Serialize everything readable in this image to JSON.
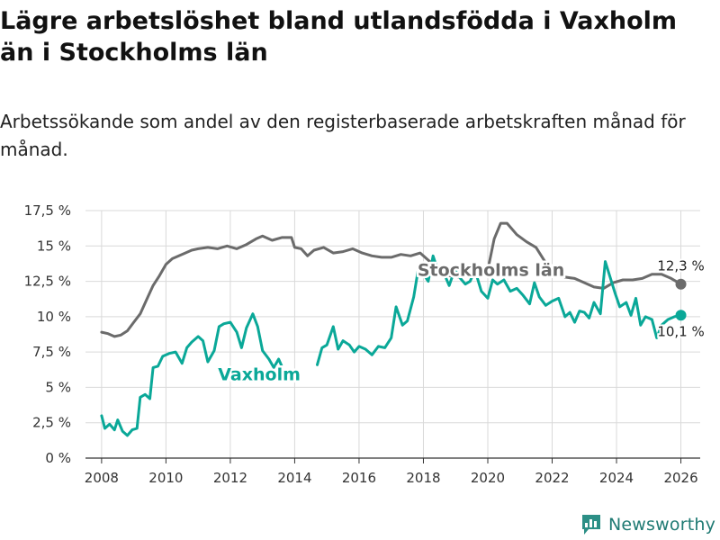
{
  "title": "Lägre arbetslöshet bland utlandsfödda i Vaxholm än i Stockholms län",
  "subtitle": "Arbetssökande som andel av den registerbaserade arbetskraften månad för månad.",
  "brand": "Newsworthy",
  "colors": {
    "stockholm": "#6b6b6b",
    "vaxholm": "#0aa898",
    "brand": "#1f7a73"
  },
  "chart_data": {
    "type": "line",
    "title": "Lägre arbetslöshet bland utlandsfödda i Vaxholm än i Stockholms län",
    "xlabel": "",
    "ylabel": "",
    "xlim": [
      2007.5,
      2026.6
    ],
    "ylim": [
      0,
      17.5
    ],
    "grid": true,
    "x_ticks": [
      2008,
      2010,
      2012,
      2014,
      2016,
      2018,
      2020,
      2022,
      2024,
      2026
    ],
    "y_ticks": [
      0,
      2.5,
      5,
      7.5,
      10,
      12.5,
      15,
      17.5
    ],
    "y_tick_labels": [
      "0 %",
      "2,5 %",
      "5 %",
      "7,5 %",
      "10 %",
      "12,5 %",
      "15 %",
      "17,5 %"
    ],
    "series": [
      {
        "name": "Stockholms län",
        "color": "#6b6b6b",
        "end_label": "12,3 %",
        "points": [
          [
            2008.0,
            8.9
          ],
          [
            2008.2,
            8.8
          ],
          [
            2008.4,
            8.6
          ],
          [
            2008.6,
            8.7
          ],
          [
            2008.8,
            9.0
          ],
          [
            2009.0,
            9.6
          ],
          [
            2009.2,
            10.2
          ],
          [
            2009.4,
            11.2
          ],
          [
            2009.6,
            12.2
          ],
          [
            2009.8,
            12.9
          ],
          [
            2010.0,
            13.7
          ],
          [
            2010.2,
            14.1
          ],
          [
            2010.4,
            14.3
          ],
          [
            2010.6,
            14.5
          ],
          [
            2010.8,
            14.7
          ],
          [
            2011.0,
            14.8
          ],
          [
            2011.3,
            14.9
          ],
          [
            2011.6,
            14.8
          ],
          [
            2011.9,
            15.0
          ],
          [
            2012.2,
            14.8
          ],
          [
            2012.5,
            15.1
          ],
          [
            2012.8,
            15.5
          ],
          [
            2013.0,
            15.7
          ],
          [
            2013.3,
            15.4
          ],
          [
            2013.6,
            15.6
          ],
          [
            2013.9,
            15.6
          ],
          [
            2014.0,
            14.9
          ],
          [
            2014.2,
            14.8
          ],
          [
            2014.4,
            14.3
          ],
          [
            2014.6,
            14.7
          ],
          [
            2014.9,
            14.9
          ],
          [
            2015.2,
            14.5
          ],
          [
            2015.5,
            14.6
          ],
          [
            2015.8,
            14.8
          ],
          [
            2016.1,
            14.5
          ],
          [
            2016.4,
            14.3
          ],
          [
            2016.7,
            14.2
          ],
          [
            2017.0,
            14.2
          ],
          [
            2017.3,
            14.4
          ],
          [
            2017.6,
            14.3
          ],
          [
            2017.9,
            14.5
          ],
          [
            2018.2,
            13.9
          ],
          [
            2018.5,
            13.2
          ],
          [
            2018.8,
            12.9
          ],
          [
            2019.1,
            12.8
          ],
          [
            2019.4,
            12.9
          ],
          [
            2019.7,
            12.9
          ],
          [
            2020.0,
            13.3
          ],
          [
            2020.2,
            15.5
          ],
          [
            2020.4,
            16.6
          ],
          [
            2020.6,
            16.6
          ],
          [
            2020.9,
            15.8
          ],
          [
            2021.2,
            15.3
          ],
          [
            2021.5,
            14.9
          ],
          [
            2021.8,
            13.8
          ],
          [
            2022.1,
            13.2
          ],
          [
            2022.4,
            12.8
          ],
          [
            2022.7,
            12.7
          ],
          [
            2023.0,
            12.4
          ],
          [
            2023.3,
            12.1
          ],
          [
            2023.6,
            12.0
          ],
          [
            2023.9,
            12.4
          ],
          [
            2024.2,
            12.6
          ],
          [
            2024.5,
            12.6
          ],
          [
            2024.8,
            12.7
          ],
          [
            2025.1,
            13.0
          ],
          [
            2025.4,
            13.0
          ],
          [
            2025.7,
            12.7
          ],
          [
            2026.0,
            12.3
          ]
        ]
      },
      {
        "name": "Vaxholm",
        "color": "#0aa898",
        "end_label": "10,1 %",
        "points": [
          [
            2008.0,
            3.0
          ],
          [
            2008.1,
            2.1
          ],
          [
            2008.25,
            2.4
          ],
          [
            2008.4,
            2.0
          ],
          [
            2008.5,
            2.7
          ],
          [
            2008.65,
            1.9
          ],
          [
            2008.8,
            1.6
          ],
          [
            2008.95,
            2.0
          ],
          [
            2009.1,
            2.1
          ],
          [
            2009.2,
            4.3
          ],
          [
            2009.35,
            4.5
          ],
          [
            2009.5,
            4.2
          ],
          [
            2009.6,
            6.4
          ],
          [
            2009.75,
            6.5
          ],
          [
            2009.9,
            7.2
          ],
          [
            2010.1,
            7.4
          ],
          [
            2010.3,
            7.5
          ],
          [
            2010.5,
            6.7
          ],
          [
            2010.65,
            7.8
          ],
          [
            2010.8,
            8.2
          ],
          [
            2011.0,
            8.6
          ],
          [
            2011.15,
            8.3
          ],
          [
            2011.3,
            6.8
          ],
          [
            2011.5,
            7.6
          ],
          [
            2011.65,
            9.3
          ],
          [
            2011.8,
            9.5
          ],
          [
            2012.0,
            9.6
          ],
          [
            2012.2,
            8.9
          ],
          [
            2012.35,
            7.8
          ],
          [
            2012.5,
            9.2
          ],
          [
            2012.7,
            10.2
          ],
          [
            2012.85,
            9.3
          ],
          [
            2013.0,
            7.6
          ],
          [
            2013.2,
            7.0
          ],
          [
            2013.35,
            6.4
          ],
          [
            2013.5,
            7.0
          ],
          [
            2013.6,
            6.5
          ],
          null,
          [
            2014.7,
            6.6
          ],
          [
            2014.85,
            7.8
          ],
          [
            2015.0,
            8.0
          ],
          [
            2015.2,
            9.3
          ],
          [
            2015.35,
            7.7
          ],
          [
            2015.5,
            8.3
          ],
          [
            2015.7,
            8.0
          ],
          [
            2015.85,
            7.5
          ],
          [
            2016.0,
            7.9
          ],
          [
            2016.2,
            7.7
          ],
          [
            2016.4,
            7.3
          ],
          [
            2016.6,
            7.9
          ],
          [
            2016.8,
            7.8
          ],
          [
            2017.0,
            8.5
          ],
          [
            2017.15,
            10.7
          ],
          [
            2017.35,
            9.4
          ],
          [
            2017.5,
            9.7
          ],
          [
            2017.7,
            11.4
          ],
          [
            2017.85,
            13.5
          ],
          [
            2018.0,
            13.0
          ],
          [
            2018.15,
            12.5
          ],
          [
            2018.3,
            14.3
          ],
          [
            2018.5,
            12.9
          ],
          [
            2018.65,
            13.0
          ],
          [
            2018.8,
            12.2
          ],
          [
            2019.0,
            13.5
          ],
          [
            2019.15,
            12.7
          ],
          [
            2019.3,
            12.3
          ],
          [
            2019.45,
            12.5
          ],
          [
            2019.6,
            13.3
          ],
          [
            2019.8,
            11.8
          ],
          [
            2020.0,
            11.3
          ],
          [
            2020.15,
            12.6
          ],
          [
            2020.3,
            12.3
          ],
          [
            2020.5,
            12.6
          ],
          [
            2020.7,
            11.8
          ],
          [
            2020.9,
            12.0
          ],
          [
            2021.1,
            11.5
          ],
          [
            2021.3,
            10.9
          ],
          [
            2021.45,
            12.4
          ],
          [
            2021.6,
            11.4
          ],
          [
            2021.8,
            10.8
          ],
          [
            2022.0,
            11.1
          ],
          [
            2022.2,
            11.3
          ],
          [
            2022.4,
            10.0
          ],
          [
            2022.55,
            10.3
          ],
          [
            2022.7,
            9.6
          ],
          [
            2022.85,
            10.4
          ],
          [
            2023.0,
            10.3
          ],
          [
            2023.15,
            9.9
          ],
          [
            2023.3,
            11.0
          ],
          [
            2023.5,
            10.2
          ],
          [
            2023.65,
            13.9
          ],
          [
            2023.8,
            12.8
          ],
          [
            2023.95,
            11.7
          ],
          [
            2024.1,
            10.7
          ],
          [
            2024.3,
            11.0
          ],
          [
            2024.45,
            10.1
          ],
          [
            2024.6,
            11.3
          ],
          [
            2024.75,
            9.4
          ],
          [
            2024.9,
            10.0
          ],
          [
            2025.1,
            9.8
          ],
          [
            2025.25,
            8.5
          ],
          [
            2025.4,
            9.4
          ],
          [
            2025.6,
            9.8
          ],
          [
            2025.8,
            10.0
          ],
          [
            2026.0,
            10.1
          ]
        ]
      }
    ],
    "annotations": [
      {
        "text": "Stockholms län",
        "x": 2020.1,
        "y": 12.9,
        "color": "#6b6b6b"
      },
      {
        "text": "Vaxholm",
        "x": 2012.9,
        "y": 5.5,
        "color": "#0aa898"
      }
    ]
  }
}
